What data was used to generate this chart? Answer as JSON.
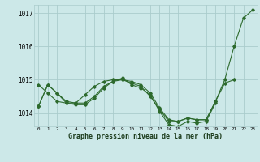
{
  "background_color": "#cce8e8",
  "grid_color": "#aacccc",
  "line_color": "#2d6a2d",
  "ylabel_values": [
    1014,
    1015,
    1016,
    1017
  ],
  "xlabel_values": [
    0,
    1,
    2,
    3,
    4,
    5,
    6,
    7,
    8,
    9,
    10,
    11,
    12,
    13,
    14,
    15,
    16,
    17,
    18,
    19,
    20,
    21,
    22,
    23
  ],
  "xlabel_label": "Graphe pression niveau de la mer (hPa)",
  "ylim": [
    1013.6,
    1017.25
  ],
  "xlim": [
    -0.5,
    23.5
  ],
  "series": [
    [
      1014.2,
      1014.85,
      1014.6,
      1014.35,
      1014.3,
      1014.3,
      1014.5,
      1014.8,
      1014.95,
      1015.0,
      1014.95,
      1014.85,
      1014.6,
      1014.15,
      1013.8,
      1013.75,
      1013.85,
      1013.8,
      1013.8,
      1014.35,
      1015.0,
      1016.0,
      1016.85,
      1017.1
    ],
    [
      1014.85,
      1014.6,
      1014.35,
      1014.3,
      1014.3,
      1014.55,
      1014.8,
      1014.95,
      1015.0,
      1015.0,
      1014.9,
      1014.8,
      1014.5,
      1014.1,
      1013.75,
      1013.75,
      1013.85,
      1013.8,
      1013.8,
      1014.35,
      1014.9,
      1015.0,
      null,
      null
    ],
    [
      1014.2,
      1014.85,
      1014.6,
      1014.3,
      1014.25,
      1014.25,
      1014.45,
      1014.75,
      1014.95,
      1015.05,
      1014.85,
      1014.75,
      1014.55,
      1014.05,
      1013.65,
      1013.6,
      1013.75,
      1013.7,
      1013.75,
      1014.3,
      null,
      null,
      null,
      null
    ],
    [
      1014.2,
      null,
      null,
      null,
      null,
      null,
      null,
      null,
      null,
      null,
      null,
      null,
      null,
      null,
      null,
      null,
      null,
      null,
      null,
      null,
      null,
      null,
      null,
      null
    ]
  ],
  "figsize": [
    3.2,
    2.0
  ],
  "dpi": 100
}
